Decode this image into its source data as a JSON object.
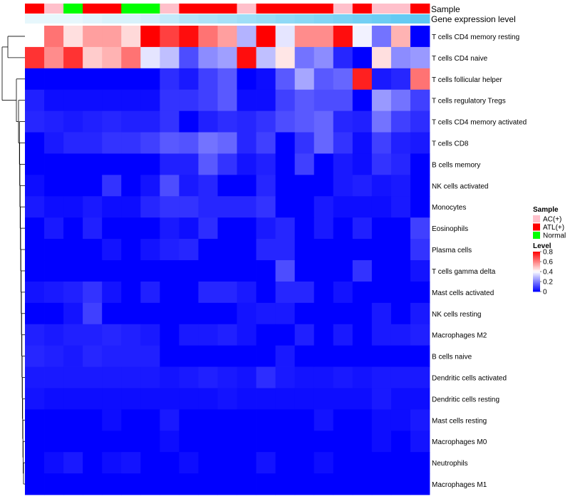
{
  "chart_data": {
    "type": "heatmap",
    "title": "",
    "annotation_labels": {
      "sample": "Sample",
      "gene": "Gene expression level"
    },
    "sample_annotation": [
      "ATL(+)",
      "AC(+)",
      "Normal",
      "ATL(+)",
      "ATL(+)",
      "Normal",
      "Normal",
      "AC(+)",
      "ATL(+)",
      "ATL(+)",
      "ATL(+)",
      "AC(+)",
      "ATL(+)",
      "ATL(+)",
      "ATL(+)",
      "ATL(+)",
      "AC(+)",
      "ATL(+)",
      "AC(+)",
      "AC(+)",
      "ATL(+)"
    ],
    "gene_annotation": [
      0.05,
      0.05,
      0.05,
      0.1,
      0.15,
      0.15,
      0.2,
      0.3,
      0.4,
      0.45,
      0.5,
      0.55,
      0.6,
      0.65,
      0.7,
      0.75,
      0.8,
      0.85,
      0.9,
      0.95,
      1.0
    ],
    "rows": [
      "T cells CD4 memory resting",
      "T cells CD4 naive",
      "T cells follicular helper",
      "T cells regulatory  Tregs",
      "T cells CD4 memory activated",
      "T cells CD8",
      "B cells memory",
      "NK cells activated",
      "Monocytes",
      "Eosinophils",
      "Plasma cells",
      "T cells gamma delta",
      "Mast cells activated",
      "NK cells resting",
      "Macrophages M2",
      "B cells naive",
      "Dendritic cells activated",
      "Dendritic cells resting",
      "Mast cells resting",
      "Macrophages M0",
      "Neutrophils",
      "Macrophages M1"
    ],
    "values": [
      [
        0.4,
        0.62,
        0.45,
        0.55,
        0.55,
        0.46,
        0.8,
        0.7,
        0.78,
        0.62,
        0.55,
        0.28,
        0.8,
        0.36,
        0.58,
        0.58,
        0.78,
        0.38,
        0.18,
        0.52,
        0.0
      ],
      [
        0.72,
        0.58,
        0.72,
        0.48,
        0.52,
        0.62,
        0.36,
        0.3,
        0.12,
        0.22,
        0.25,
        0.78,
        0.3,
        0.44,
        0.18,
        0.22,
        0.06,
        0.0,
        0.45,
        0.22,
        0.24
      ],
      [
        0.0,
        0.0,
        0.0,
        0.0,
        0.0,
        0.0,
        0.0,
        0.07,
        0.04,
        0.1,
        0.14,
        0.0,
        0.02,
        0.14,
        0.26,
        0.14,
        0.16,
        0.75,
        0.04,
        0.06,
        0.62
      ],
      [
        0.05,
        0.02,
        0.02,
        0.02,
        0.02,
        0.02,
        0.02,
        0.08,
        0.08,
        0.1,
        0.14,
        0.02,
        0.02,
        0.1,
        0.14,
        0.12,
        0.12,
        0.0,
        0.24,
        0.18,
        0.1
      ],
      [
        0.06,
        0.05,
        0.04,
        0.05,
        0.06,
        0.05,
        0.05,
        0.08,
        0.0,
        0.05,
        0.07,
        0.06,
        0.08,
        0.12,
        0.14,
        0.16,
        0.06,
        0.05,
        0.18,
        0.1,
        0.07
      ],
      [
        0.0,
        0.04,
        0.06,
        0.06,
        0.08,
        0.08,
        0.1,
        0.14,
        0.13,
        0.18,
        0.16,
        0.06,
        0.1,
        0.0,
        0.08,
        0.16,
        0.08,
        0.02,
        0.1,
        0.05,
        0.04
      ],
      [
        0.0,
        0.0,
        0.0,
        0.0,
        0.0,
        0.0,
        0.0,
        0.05,
        0.05,
        0.14,
        0.08,
        0.03,
        0.05,
        0.0,
        0.1,
        0.0,
        0.04,
        0.02,
        0.08,
        0.06,
        0.0
      ],
      [
        0.02,
        0.0,
        0.0,
        0.0,
        0.08,
        0.0,
        0.03,
        0.12,
        0.04,
        0.06,
        0.0,
        0.0,
        0.06,
        0.0,
        0.0,
        0.0,
        0.04,
        0.05,
        0.03,
        0.04,
        0.0
      ],
      [
        0.04,
        0.02,
        0.02,
        0.04,
        0.02,
        0.02,
        0.06,
        0.08,
        0.08,
        0.06,
        0.06,
        0.06,
        0.08,
        0.0,
        0.0,
        0.04,
        0.02,
        0.02,
        0.02,
        0.04,
        0.0
      ],
      [
        0.0,
        0.04,
        0.0,
        0.05,
        0.0,
        0.0,
        0.0,
        0.04,
        0.02,
        0.07,
        0.0,
        0.0,
        0.04,
        0.06,
        0.0,
        0.04,
        0.0,
        0.05,
        0.0,
        0.0,
        0.1
      ],
      [
        0.0,
        0.0,
        0.0,
        0.0,
        0.03,
        0.0,
        0.03,
        0.05,
        0.06,
        0.0,
        0.0,
        0.0,
        0.06,
        0.06,
        0.0,
        0.0,
        0.0,
        0.0,
        0.0,
        0.0,
        0.08
      ],
      [
        0.0,
        0.0,
        0.0,
        0.0,
        0.0,
        0.0,
        0.0,
        0.0,
        0.0,
        0.0,
        0.0,
        0.0,
        0.0,
        0.12,
        0.0,
        0.0,
        0.0,
        0.08,
        0.0,
        0.0,
        0.03
      ],
      [
        0.03,
        0.04,
        0.05,
        0.08,
        0.03,
        0.0,
        0.05,
        0.0,
        0.0,
        0.06,
        0.06,
        0.04,
        0.0,
        0.06,
        0.06,
        0.0,
        0.03,
        0.0,
        0.0,
        0.0,
        0.0
      ],
      [
        0.0,
        0.0,
        0.03,
        0.1,
        0.0,
        0.0,
        0.0,
        0.0,
        0.0,
        0.0,
        0.0,
        0.03,
        0.04,
        0.04,
        0.0,
        0.0,
        0.0,
        0.0,
        0.04,
        0.0,
        0.04
      ],
      [
        0.05,
        0.04,
        0.05,
        0.05,
        0.06,
        0.05,
        0.04,
        0.0,
        0.04,
        0.04,
        0.05,
        0.03,
        0.0,
        0.0,
        0.05,
        0.0,
        0.04,
        0.0,
        0.04,
        0.04,
        0.05
      ],
      [
        0.06,
        0.05,
        0.04,
        0.06,
        0.05,
        0.05,
        0.05,
        0.0,
        0.0,
        0.0,
        0.0,
        0.0,
        0.0,
        0.04,
        0.0,
        0.0,
        0.0,
        0.0,
        0.0,
        0.0,
        0.0
      ],
      [
        0.04,
        0.04,
        0.04,
        0.04,
        0.04,
        0.04,
        0.04,
        0.03,
        0.04,
        0.05,
        0.04,
        0.03,
        0.07,
        0.04,
        0.03,
        0.03,
        0.04,
        0.03,
        0.04,
        0.04,
        0.04
      ],
      [
        0.03,
        0.02,
        0.02,
        0.02,
        0.02,
        0.02,
        0.02,
        0.02,
        0.02,
        0.02,
        0.03,
        0.02,
        0.02,
        0.02,
        0.02,
        0.02,
        0.02,
        0.02,
        0.04,
        0.02,
        0.02
      ],
      [
        0.0,
        0.0,
        0.0,
        0.0,
        0.02,
        0.0,
        0.0,
        0.04,
        0.0,
        0.0,
        0.0,
        0.0,
        0.0,
        0.0,
        0.0,
        0.03,
        0.0,
        0.0,
        0.02,
        0.02,
        0.04
      ],
      [
        0.0,
        0.0,
        0.0,
        0.0,
        0.0,
        0.0,
        0.0,
        0.02,
        0.0,
        0.0,
        0.0,
        0.0,
        0.0,
        0.0,
        0.0,
        0.0,
        0.0,
        0.0,
        0.02,
        0.0,
        0.03
      ],
      [
        0.0,
        0.02,
        0.04,
        0.0,
        0.02,
        0.03,
        0.0,
        0.0,
        0.02,
        0.0,
        0.0,
        0.0,
        0.03,
        0.0,
        0.0,
        0.02,
        0.0,
        0.0,
        0.0,
        0.0,
        0.0
      ],
      [
        0.0,
        0.0,
        0.0,
        0.0,
        0.0,
        0.0,
        0.0,
        0.0,
        0.0,
        0.0,
        0.0,
        0.0,
        0.0,
        0.0,
        0.0,
        0.0,
        0.0,
        0.0,
        0.0,
        0.0,
        0.0
      ]
    ],
    "value_range": [
      0,
      0.8
    ],
    "colors": {
      "low": "#0000ff",
      "mid": "#ffffff",
      "high": "#ff0000"
    },
    "legend": {
      "sample_title": "Sample",
      "sample_items": [
        {
          "label": "AC(+)",
          "color": "#ffc0cb"
        },
        {
          "label": "ATL(+)",
          "color": "#ff0000"
        },
        {
          "label": "Normal",
          "color": "#00ff00"
        }
      ],
      "level_title": "Level",
      "level_ticks": [
        "0.8",
        "0.6",
        "0.4",
        "0.2",
        "0"
      ],
      "level_tick_values": [
        0.8,
        0.6,
        0.4,
        0.2,
        0
      ],
      "gene_gradient": {
        "low": "#eef9fd",
        "high": "#5ec8f2"
      },
      "placement": "right"
    }
  }
}
